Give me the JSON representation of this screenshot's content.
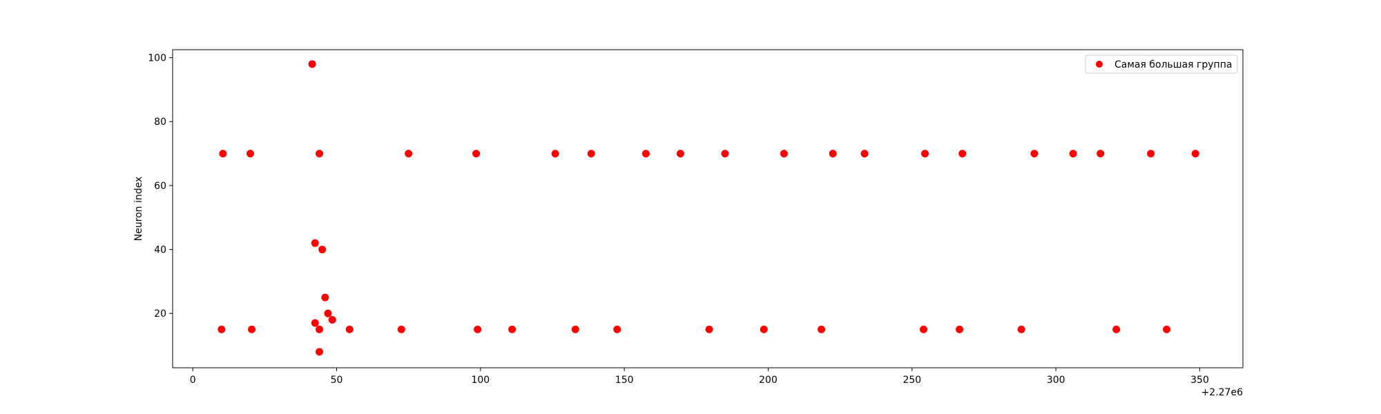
{
  "chart_data": {
    "type": "scatter",
    "title": "",
    "xlabel": "",
    "ylabel": "Neuron index",
    "x_offset_label": "+2.27e6",
    "xlim": [
      -7,
      365
    ],
    "ylim": [
      3,
      102.5
    ],
    "xticks": [
      0,
      50,
      100,
      150,
      200,
      250,
      300,
      350
    ],
    "yticks": [
      20,
      40,
      60,
      80,
      100
    ],
    "grid": false,
    "legend_position": "top-right",
    "series": [
      {
        "name": "Самая большая группа",
        "color": "#ff0000",
        "points": [
          [
            10,
            15
          ],
          [
            10.5,
            70
          ],
          [
            20,
            70
          ],
          [
            20.5,
            15
          ],
          [
            41.5,
            98
          ],
          [
            42.5,
            42
          ],
          [
            42.5,
            17
          ],
          [
            44,
            70
          ],
          [
            44,
            15
          ],
          [
            44,
            8
          ],
          [
            45,
            40
          ],
          [
            46,
            25
          ],
          [
            47,
            20
          ],
          [
            48.5,
            18
          ],
          [
            54.5,
            15
          ],
          [
            72.5,
            15
          ],
          [
            75,
            70
          ],
          [
            98.5,
            70
          ],
          [
            99,
            15
          ],
          [
            111,
            15
          ],
          [
            126,
            70
          ],
          [
            133,
            15
          ],
          [
            138.5,
            70
          ],
          [
            147.5,
            15
          ],
          [
            157.5,
            70
          ],
          [
            169.5,
            70
          ],
          [
            179.5,
            15
          ],
          [
            185,
            70
          ],
          [
            198.5,
            15
          ],
          [
            205.5,
            70
          ],
          [
            218.5,
            15
          ],
          [
            222.5,
            70
          ],
          [
            233.5,
            70
          ],
          [
            254,
            15
          ],
          [
            254.5,
            70
          ],
          [
            266.5,
            15
          ],
          [
            267.5,
            70
          ],
          [
            288,
            15
          ],
          [
            292.5,
            70
          ],
          [
            306,
            70
          ],
          [
            315.5,
            70
          ],
          [
            321,
            15
          ],
          [
            333,
            70
          ],
          [
            338.5,
            15
          ],
          [
            348.5,
            70
          ]
        ]
      }
    ]
  }
}
